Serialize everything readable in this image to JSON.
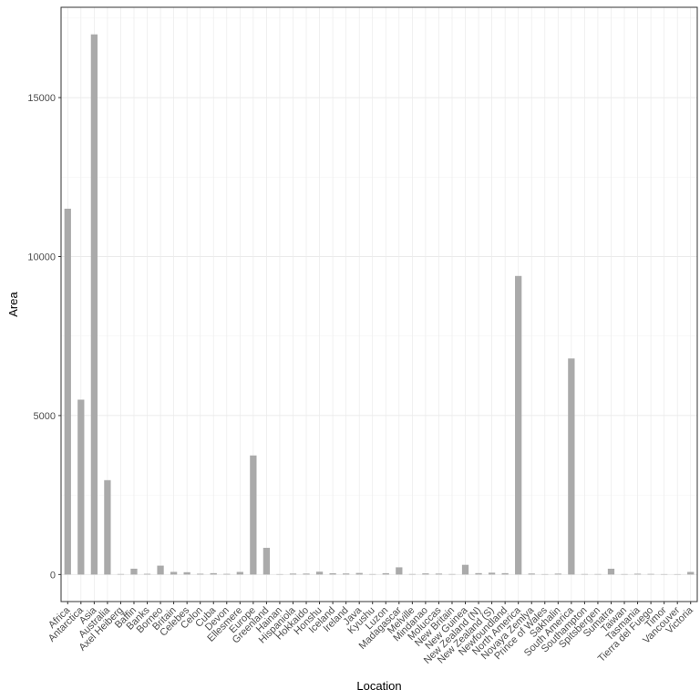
{
  "chart_data": {
    "type": "bar",
    "x_label": "Location",
    "y_label": "Area",
    "categories": [
      "Africa",
      "Antarctica",
      "Asia",
      "Australia",
      "Axel Heiberg",
      "Baffin",
      "Banks",
      "Borneo",
      "Britain",
      "Celebes",
      "Celon",
      "Cuba",
      "Devon",
      "Ellesmere",
      "Europe",
      "Greenland",
      "Hainan",
      "Hispaniola",
      "Hokkaido",
      "Honshu",
      "Iceland",
      "Ireland",
      "Java",
      "Kyushu",
      "Luzon",
      "Madagascar",
      "Melville",
      "Mindanao",
      "Moluccas",
      "New Britain",
      "New Guinea",
      "New Zealand (N)",
      "New Zealand (S)",
      "Newfoundland",
      "North America",
      "Novaya Zemlya",
      "Prince of Wales",
      "Sakhalin",
      "South America",
      "Southampton",
      "Spitsbergen",
      "Sumatra",
      "Taiwan",
      "Tasmania",
      "Tierra del Fuego",
      "Timor",
      "Vancouver",
      "Victoria"
    ],
    "values": [
      11506,
      5500,
      16988,
      2968,
      16,
      184,
      23,
      280,
      84,
      73,
      25,
      43,
      21,
      82,
      3745,
      840,
      13,
      30,
      30,
      89,
      40,
      33,
      49,
      14,
      42,
      227,
      16,
      36,
      29,
      15,
      306,
      44,
      58,
      43,
      9390,
      32,
      13,
      29,
      6795,
      16,
      15,
      183,
      14,
      26,
      19,
      13,
      12,
      82
    ],
    "color": "#aaaaaa",
    "ylim": [
      -850,
      17840
    ],
    "yticks": [
      0,
      5000,
      10000,
      15000
    ],
    "grid": true
  }
}
